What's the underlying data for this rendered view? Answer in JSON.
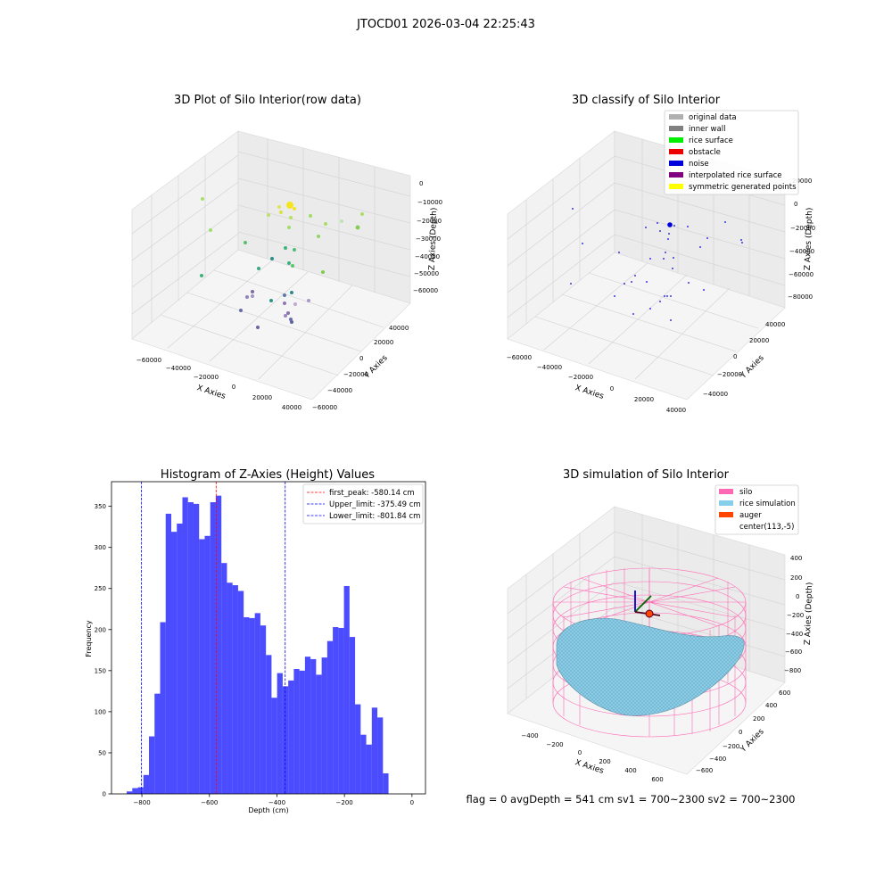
{
  "figure": {
    "suptitle": "JTOCD01 2026-03-04 22:25:43",
    "status_line": "flag = 0     avgDepth = 541 cm  sv1 = 700~2300  sv2 = 700~2300"
  },
  "panels": {
    "raw": {
      "title": "3D Plot of Silo Interior(row data)",
      "xlabel": "X Axies",
      "ylabel": "Y Axies",
      "zlabel": "Z Axies (Depth)",
      "xticks": [
        "−60000",
        "−40000",
        "−20000",
        "0",
        "20000",
        "40000"
      ],
      "yticks": [
        "−60000",
        "−40000",
        "−20000",
        "0",
        "20000",
        "40000"
      ],
      "zticks": [
        "0",
        "−10000",
        "−20000",
        "−30000",
        "−40000",
        "−50000",
        "−60000"
      ]
    },
    "classify": {
      "title": "3D classify of Silo Interior",
      "xlabel": "X Axies",
      "ylabel": "Y Axies",
      "zlabel": "Z Axies (Depth)",
      "xticks": [
        "−60000",
        "−40000",
        "−20000",
        "0",
        "20000",
        "40000"
      ],
      "yticks": [
        "−40000",
        "−20000",
        "0",
        "20000",
        "40000"
      ],
      "zticks": [
        "20000",
        "0",
        "−20000",
        "−40000",
        "−60000",
        "−80000"
      ],
      "legend": [
        {
          "label": "original data",
          "color": "#b0b0b0"
        },
        {
          "label": "inner wall",
          "color": "#808080"
        },
        {
          "label": "rice surface",
          "color": "#00ee00"
        },
        {
          "label": "obstacle",
          "color": "#ee0000"
        },
        {
          "label": "noise",
          "color": "#0000dd"
        },
        {
          "label": "interpolated rice surface",
          "color": "#800080"
        },
        {
          "label": "symmetric generated points",
          "color": "#ffff00"
        }
      ]
    },
    "histogram": {
      "title": "Histogram of Z-Axies (Height) Values",
      "xlabel": "Depth (cm)",
      "ylabel": "Frequency",
      "legend": [
        {
          "label": "first_peak: -580.14 cm",
          "color": "#ff0000"
        },
        {
          "label": "Upper_limit: -375.49 cm",
          "color": "#0000ff"
        },
        {
          "label": "Lower_limit: -801.84 cm",
          "color": "#0000ff"
        }
      ]
    },
    "simulation": {
      "title": "3D simulation of Silo Interior",
      "xlabel": "X Axies",
      "ylabel": "Y Axies",
      "zlabel": "Z Axies (Depth)",
      "xticks": [
        "−400",
        "−200",
        "0",
        "200",
        "400",
        "600"
      ],
      "yticks": [
        "−600",
        "−400",
        "−200",
        "0",
        "200",
        "400",
        "600"
      ],
      "zticks": [
        "400",
        "200",
        "0",
        "−200",
        "−400",
        "−600",
        "−800"
      ],
      "legend": [
        {
          "label": "silo",
          "color": "#ff69b4"
        },
        {
          "label": "rice simulation",
          "color": "#87ceeb"
        },
        {
          "label": "auger",
          "color": "#ff4500"
        },
        {
          "label": "center(113,-5)",
          "color": ""
        }
      ]
    }
  },
  "chart_data": [
    {
      "type": "scatter",
      "title": "3D Plot of Silo Interior(row data)",
      "xlabel": "X Axies",
      "ylabel": "Y Axies",
      "zlabel": "Z Axies (Depth)",
      "xlim": [
        -65000,
        45000
      ],
      "ylim": [
        -65000,
        45000
      ],
      "zlim": [
        -65000,
        2000
      ],
      "grid": true
    },
    {
      "type": "scatter",
      "title": "3D classify of Silo Interior",
      "xlabel": "X Axies",
      "ylabel": "Y Axies",
      "zlabel": "Z Axies (Depth)",
      "xlim": [
        -65000,
        45000
      ],
      "ylim": [
        -50000,
        45000
      ],
      "zlim": [
        -85000,
        25000
      ],
      "grid": true,
      "legend_position": "top-right"
    },
    {
      "type": "bar",
      "title": "Histogram of Z-Axies (Height) Values",
      "xlabel": "Depth (cm)",
      "ylabel": "Frequency",
      "xlim": [
        -890,
        40
      ],
      "ylim": [
        0,
        380
      ],
      "xticks": [
        -800,
        -600,
        -400,
        -200,
        0
      ],
      "yticks": [
        0,
        50,
        100,
        150,
        200,
        250,
        300,
        350
      ],
      "bin_width": 16.5,
      "bin_start": -845,
      "values": [
        3,
        7,
        8,
        23,
        70,
        122,
        209,
        341,
        319,
        329,
        361,
        355,
        353,
        310,
        314,
        355,
        363,
        281,
        257,
        254,
        247,
        215,
        214,
        220,
        205,
        169,
        117,
        147,
        131,
        138,
        152,
        150,
        167,
        164,
        145,
        166,
        186,
        203,
        202,
        253,
        191,
        109,
        72,
        60,
        105,
        93,
        25
      ],
      "bar_color": "#0000ff",
      "vlines": [
        {
          "x": -580.14,
          "color": "#ff0000",
          "label": "first_peak: -580.14 cm"
        },
        {
          "x": -375.49,
          "color": "#0000ff",
          "label": "Upper_limit: -375.49 cm"
        },
        {
          "x": -801.84,
          "color": "#0000ff",
          "label": "Lower_limit: -801.84 cm"
        }
      ],
      "legend_position": "top-right"
    },
    {
      "type": "area",
      "title": "3D simulation of Silo Interior",
      "xlabel": "X Axies",
      "ylabel": "Y Axies",
      "zlabel": "Z Axies (Depth)",
      "xlim": [
        -500,
        700
      ],
      "ylim": [
        -700,
        700
      ],
      "zlim": [
        -900,
        500
      ],
      "grid": true,
      "legend_position": "top-right"
    }
  ]
}
